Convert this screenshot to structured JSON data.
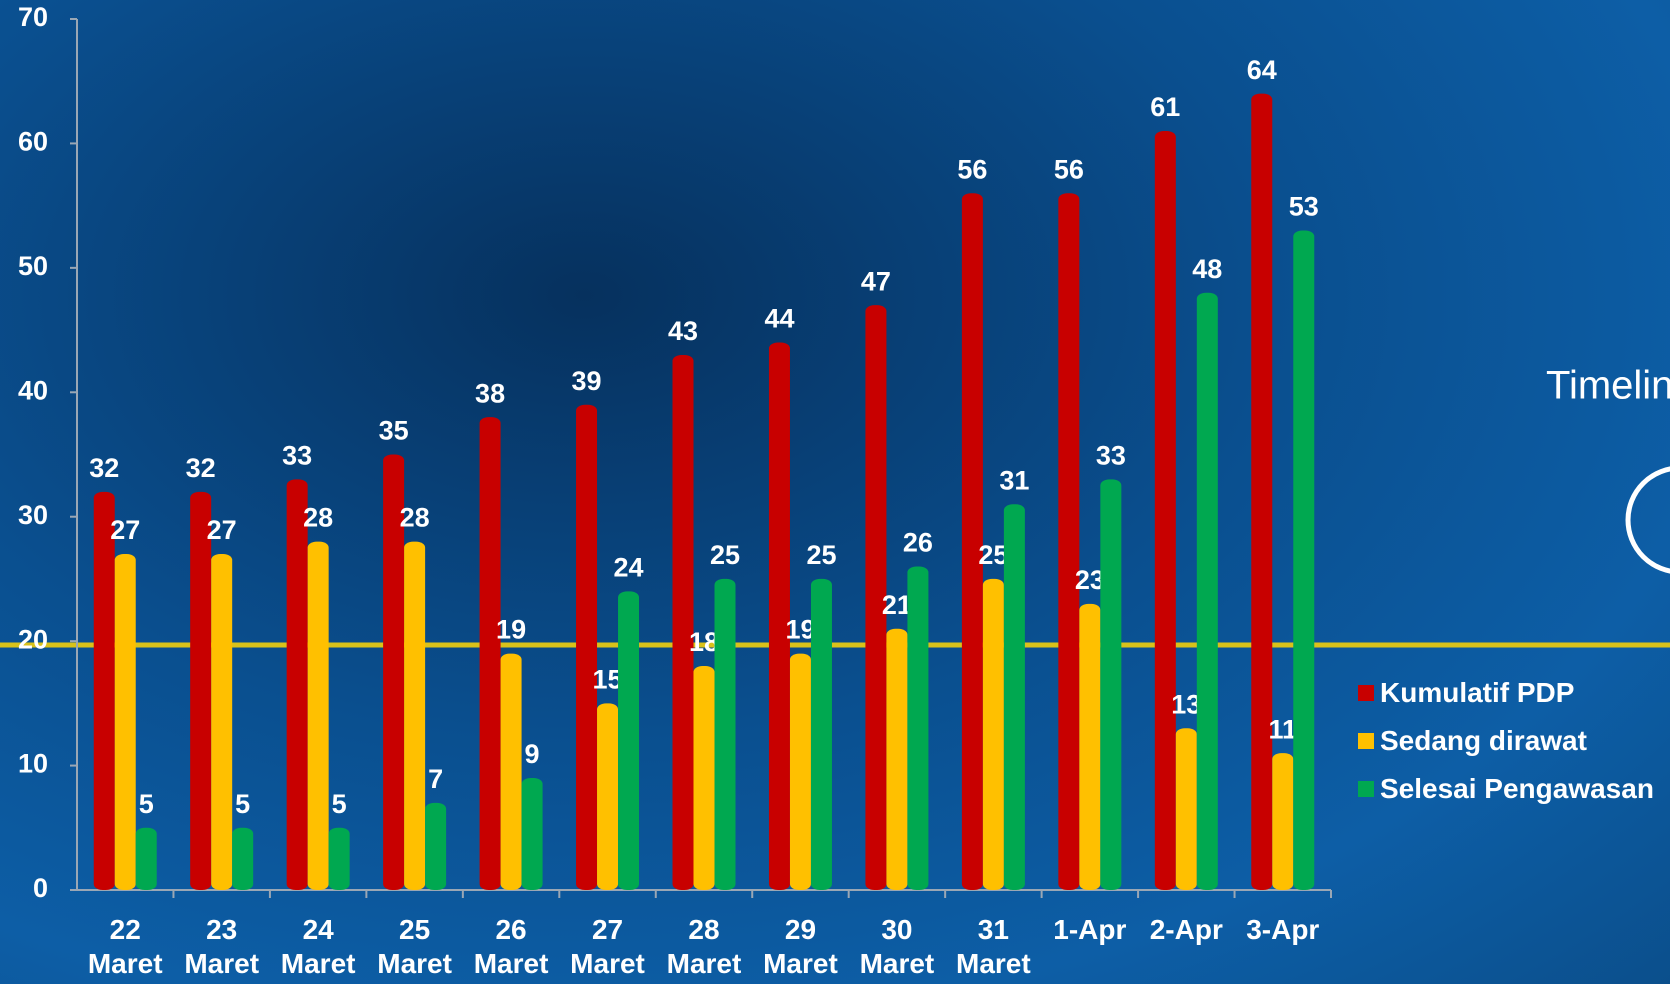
{
  "chart_data": {
    "type": "bar",
    "categories": [
      "22 Maret",
      "23 Maret",
      "24 Maret",
      "25 Maret",
      "26 Maret",
      "27 Maret",
      "28 Maret",
      "29 Maret",
      "30 Maret",
      "31 Maret",
      "1-Apr",
      "2-Apr",
      "3-Apr"
    ],
    "series": [
      {
        "name": "Kumulatif PDP",
        "color": "#c80000",
        "values": [
          32,
          32,
          33,
          35,
          38,
          39,
          43,
          44,
          47,
          56,
          56,
          61,
          64
        ]
      },
      {
        "name": "Sedang dirawat",
        "color": "#ffc000",
        "values": [
          27,
          27,
          28,
          28,
          19,
          15,
          18,
          19,
          21,
          25,
          23,
          13,
          11
        ]
      },
      {
        "name": "Selesai Pengawasan",
        "color": "#00a850",
        "values": [
          5,
          5,
          5,
          7,
          9,
          24,
          25,
          25,
          26,
          31,
          33,
          48,
          53
        ]
      }
    ],
    "ylim": [
      0,
      70
    ],
    "yticks": [
      0,
      10,
      20,
      30,
      40,
      50,
      60,
      70
    ],
    "legend": "right",
    "background_text": "Timelin"
  }
}
